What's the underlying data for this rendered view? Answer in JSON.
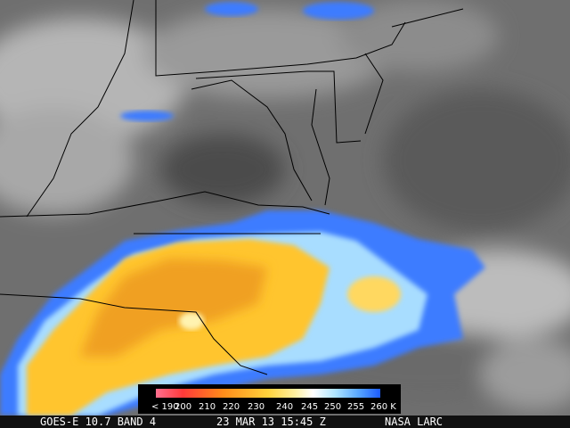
{
  "colorbar": {
    "labels": [
      "< 190",
      "200",
      "210",
      "220",
      "230",
      "240",
      "245",
      "250",
      "255",
      "260 K"
    ]
  },
  "footer": {
    "satellite": "GOES-E 10.7 BAND 4",
    "datetime": "23 MAR 13 15:45 Z",
    "credit": "NASA LARC"
  }
}
